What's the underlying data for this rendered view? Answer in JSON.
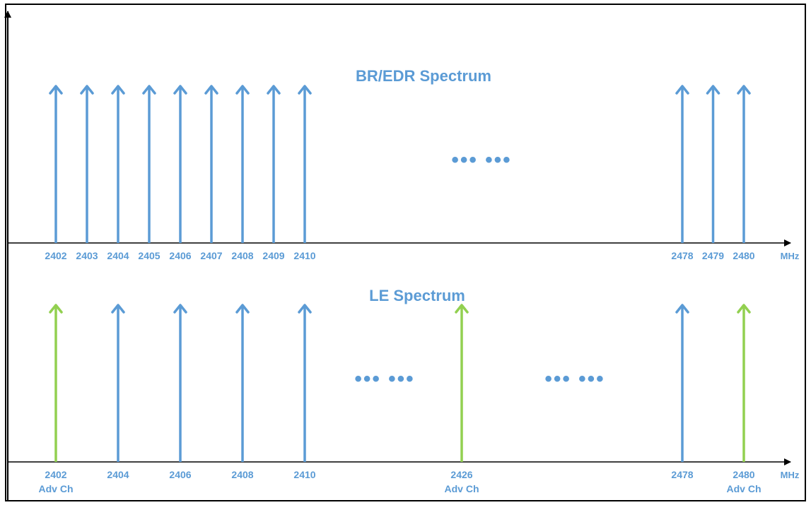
{
  "colors": {
    "data_channel": "#5b9bd5",
    "adv_channel": "#92d050",
    "label": "#5b9bd5",
    "axis": "#000000"
  },
  "top_panel": {
    "title": "BR/EDR Spectrum",
    "unit": "MHz",
    "ellipsis": "••• •••",
    "channels": [
      {
        "freq": "2402",
        "type": "data"
      },
      {
        "freq": "2403",
        "type": "data"
      },
      {
        "freq": "2404",
        "type": "data"
      },
      {
        "freq": "2405",
        "type": "data"
      },
      {
        "freq": "2406",
        "type": "data"
      },
      {
        "freq": "2407",
        "type": "data"
      },
      {
        "freq": "2408",
        "type": "data"
      },
      {
        "freq": "2409",
        "type": "data"
      },
      {
        "freq": "2410",
        "type": "data"
      },
      {
        "freq": "2478",
        "type": "data"
      },
      {
        "freq": "2479",
        "type": "data"
      },
      {
        "freq": "2480",
        "type": "data"
      }
    ]
  },
  "bottom_panel": {
    "title": "LE Spectrum",
    "unit": "MHz",
    "ellipsis_1": "••• •••",
    "ellipsis_2": "••• •••",
    "channels": [
      {
        "freq": "2402",
        "type": "adv",
        "sublabel": "Adv Ch"
      },
      {
        "freq": "2404",
        "type": "data",
        "sublabel": ""
      },
      {
        "freq": "2406",
        "type": "data",
        "sublabel": ""
      },
      {
        "freq": "2408",
        "type": "data",
        "sublabel": ""
      },
      {
        "freq": "2410",
        "type": "data",
        "sublabel": ""
      },
      {
        "freq": "2426",
        "type": "adv",
        "sublabel": "Adv Ch"
      },
      {
        "freq": "2478",
        "type": "data",
        "sublabel": ""
      },
      {
        "freq": "2480",
        "type": "adv",
        "sublabel": "Adv Ch"
      }
    ]
  }
}
